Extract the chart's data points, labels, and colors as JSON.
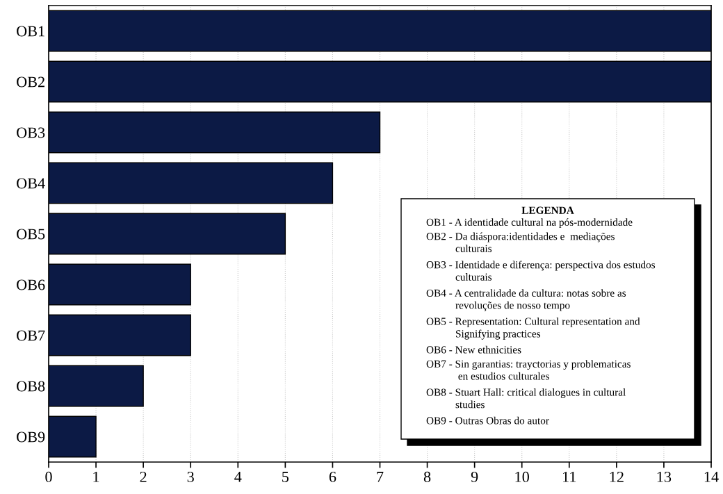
{
  "chart_data": {
    "type": "bar",
    "orientation": "horizontal",
    "categories": [
      "OB1",
      "OB2",
      "OB3",
      "OB4",
      "OB5",
      "OB6",
      "OB7",
      "OB8",
      "OB9"
    ],
    "values": [
      14,
      14,
      7,
      6,
      5,
      3,
      3,
      2,
      1
    ],
    "color": "#0c1a45",
    "xlim": [
      0,
      14
    ],
    "xticks": [
      0,
      1,
      2,
      3,
      4,
      5,
      6,
      7,
      8,
      9,
      10,
      11,
      12,
      13,
      14
    ],
    "grid": "x",
    "annotations": [
      "LEGENDA",
      "OB1 - A identidade cultural na pós-modernidade",
      "OB2 - Da diáspora:identidades e  mediações\n           culturais",
      "OB3 - Identidade e diferença: perspectiva dos estudos\n           culturais",
      "OB4 - A centralidade da cultura: notas sobre as\n           revoluções de nosso tempo",
      "OB5 - Representation: Cultural representation and\n           Signifying practices",
      "OB6 - New ethnicities",
      "OB7 - Sin garantias: trayctorias y problematicas\n            en estudios culturales",
      "OB8 - Stuart Hall: critical dialogues in cultural\n           studies",
      "OB9 - Outras Obras do autor"
    ]
  }
}
